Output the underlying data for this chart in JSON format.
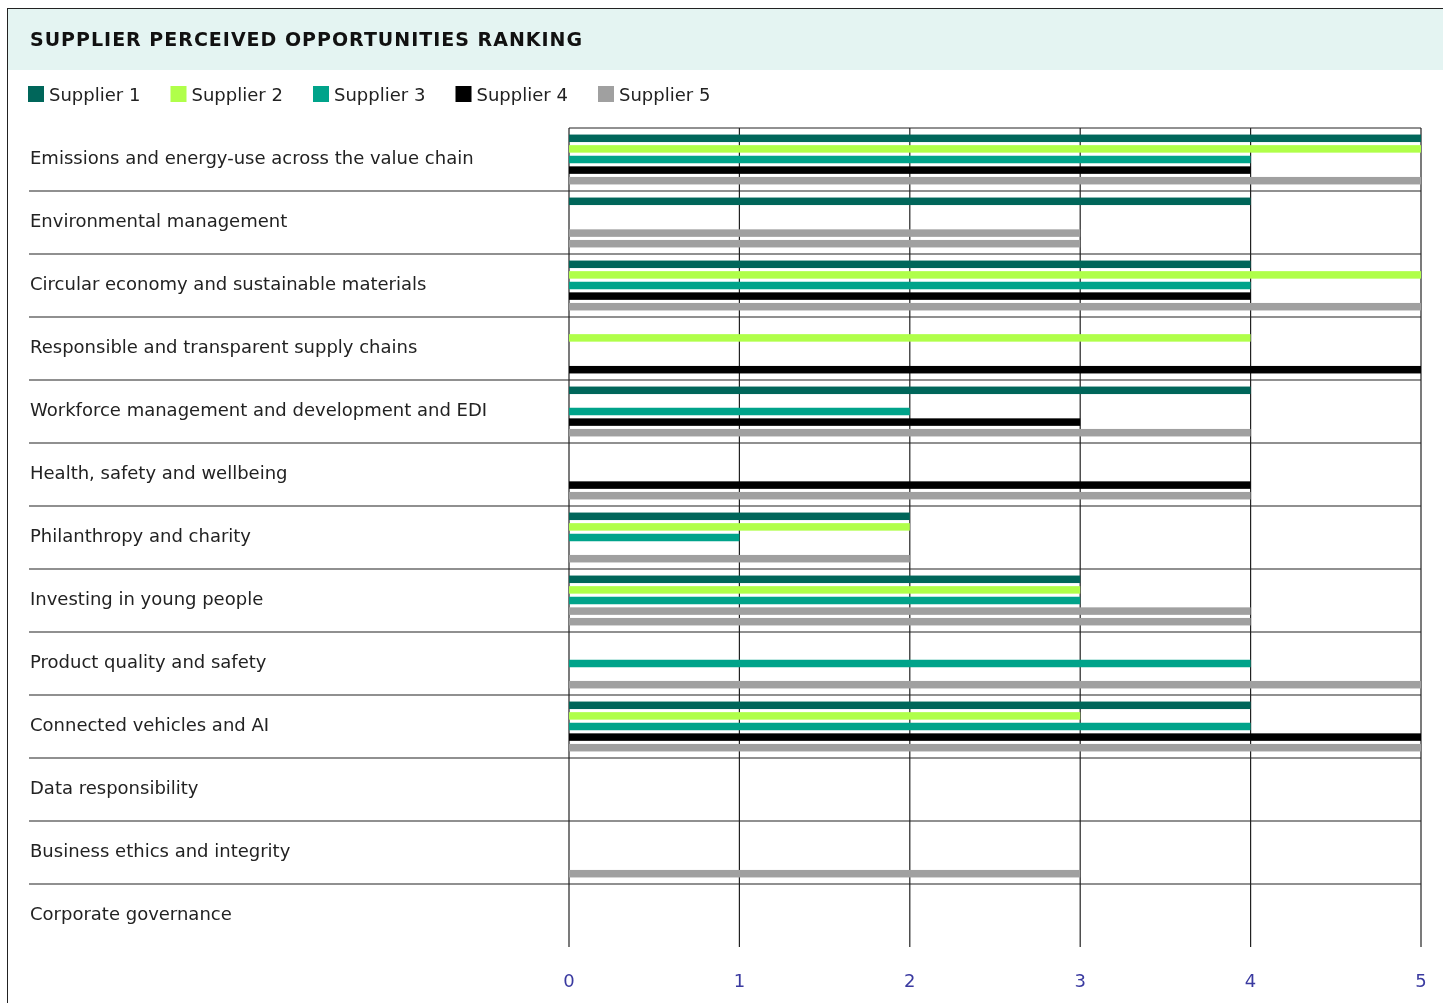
{
  "chart_data": {
    "type": "bar",
    "orientation": "horizontal",
    "title": "SUPPLIER PERCEIVED OPPORTUNITIES RANKING",
    "categories": [
      "Emissions and energy-use across the value chain",
      "Environmental management",
      "Circular economy and sustainable materials",
      "Responsible and transparent supply chains",
      "Workforce management and development and EDI",
      "Health, safety and wellbeing",
      "Philanthropy and charity",
      "Investing in young people",
      "Product quality and safety",
      "Connected vehicles and AI",
      "Data responsibility",
      "Business ethics and integrity",
      "Corporate governance"
    ],
    "series": [
      {
        "name": "Supplier 1",
        "color": "#00665a",
        "values": [
          5,
          4,
          4,
          null,
          4,
          null,
          2,
          3,
          null,
          4,
          null,
          null,
          null
        ]
      },
      {
        "name": "Supplier 2",
        "color": "#b0ff4a",
        "values": [
          5,
          null,
          5,
          4,
          null,
          null,
          2,
          3,
          null,
          3,
          null,
          null,
          null
        ]
      },
      {
        "name": "Supplier 3",
        "color": "#00a38a",
        "values": [
          4,
          null,
          4,
          null,
          2,
          null,
          1,
          3,
          4,
          4,
          null,
          null,
          null
        ]
      },
      {
        "name": "Supplier 4",
        "color": "#000000",
        "colors": [
          "#000000",
          "#a0a0a0",
          "#000000",
          null,
          "#000000",
          "#000000",
          null,
          "#a0a0a0",
          null,
          "#000000",
          null,
          null,
          null
        ],
        "values": [
          4,
          3,
          4,
          null,
          3,
          4,
          null,
          4,
          null,
          5,
          null,
          null,
          null
        ]
      },
      {
        "name": "Supplier 5",
        "color": "#a0a0a0",
        "colors": [
          "#a0a0a0",
          "#a0a0a0",
          "#a0a0a0",
          "#000000",
          "#a0a0a0",
          "#a0a0a0",
          "#a0a0a0",
          "#a0a0a0",
          "#a0a0a0",
          "#a0a0a0",
          null,
          "#a0a0a0",
          null
        ],
        "values": [
          5,
          3,
          5,
          5,
          4,
          4,
          2,
          4,
          5,
          5,
          null,
          3,
          null
        ]
      }
    ],
    "xlim": [
      0,
      5
    ],
    "xticks": [
      0,
      1,
      2,
      3,
      4,
      5
    ],
    "grid": "x",
    "legend": "top left"
  }
}
